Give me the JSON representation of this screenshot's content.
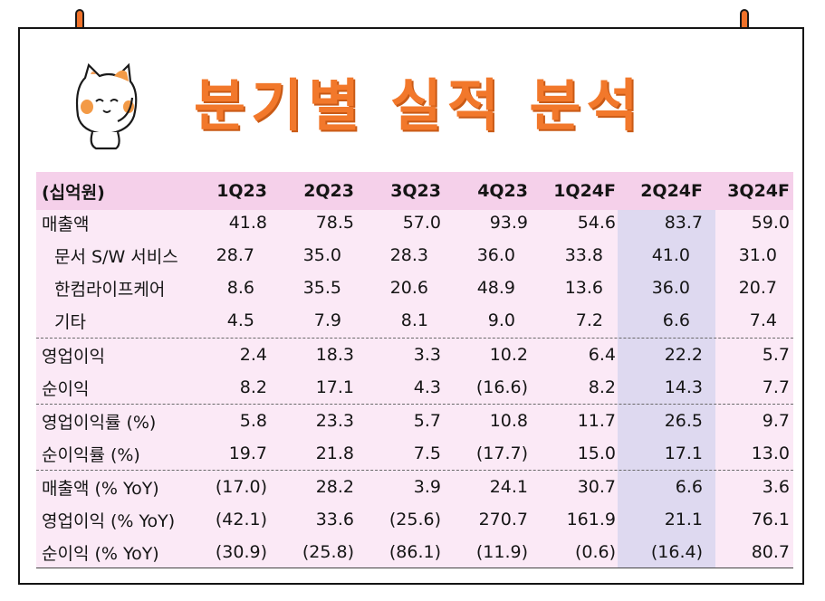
{
  "title": "분기별 실적 분석",
  "table": {
    "unit_label": "(십억원)",
    "columns": [
      "1Q23",
      "2Q23",
      "3Q23",
      "4Q23",
      "1Q24F",
      "2Q24F",
      "3Q24F"
    ],
    "highlight_column": "2Q24F",
    "rows": [
      {
        "label": "매출액",
        "indent": false,
        "values": [
          "41.8",
          "78.5",
          "57.0",
          "93.9",
          "54.6",
          "83.7",
          "59.0"
        ]
      },
      {
        "label": "문서 S/W 서비스",
        "indent": true,
        "values": [
          "28.7",
          "35.0",
          "28.3",
          "36.0",
          "33.8",
          "41.0",
          "31.0"
        ]
      },
      {
        "label": "한컴라이프케어",
        "indent": true,
        "values": [
          "8.6",
          "35.5",
          "20.6",
          "48.9",
          "13.6",
          "36.0",
          "20.7"
        ]
      },
      {
        "label": "기타",
        "indent": true,
        "values": [
          "4.5",
          "7.9",
          "8.1",
          "9.0",
          "7.2",
          "6.6",
          "7.4"
        ]
      },
      {
        "label": "영업이익",
        "indent": false,
        "values": [
          "2.4",
          "18.3",
          "3.3",
          "10.2",
          "6.4",
          "22.2",
          "5.7"
        ]
      },
      {
        "label": "순이익",
        "indent": false,
        "values": [
          "8.2",
          "17.1",
          "4.3",
          "(16.6)",
          "8.2",
          "14.3",
          "7.7"
        ]
      },
      {
        "label": "영업이익률 (%)",
        "indent": false,
        "values": [
          "5.8",
          "23.3",
          "5.7",
          "10.8",
          "11.7",
          "26.5",
          "9.7"
        ]
      },
      {
        "label": "순이익률 (%)",
        "indent": false,
        "values": [
          "19.7",
          "21.8",
          "7.5",
          "(17.7)",
          "15.0",
          "17.1",
          "13.0"
        ]
      },
      {
        "label": "매출액 (% YoY)",
        "indent": false,
        "values": [
          "(17.0)",
          "28.2",
          "3.9",
          "24.1",
          "30.7",
          "6.6",
          "3.6"
        ]
      },
      {
        "label": "영업이익 (% YoY)",
        "indent": false,
        "values": [
          "(42.1)",
          "33.6",
          "(25.6)",
          "270.7",
          "161.9",
          "21.1",
          "76.1"
        ]
      },
      {
        "label": "순이익 (% YoY)",
        "indent": false,
        "values": [
          "(30.9)",
          "(25.8)",
          "(86.1)",
          "(11.9)",
          "(0.6)",
          "(16.4)",
          "80.7"
        ]
      }
    ]
  },
  "colors": {
    "title": "#f2782b",
    "table_bg": "#fbe9f6",
    "header_bg": "#f5d0ea",
    "highlight_bg": "#ded9f0"
  }
}
